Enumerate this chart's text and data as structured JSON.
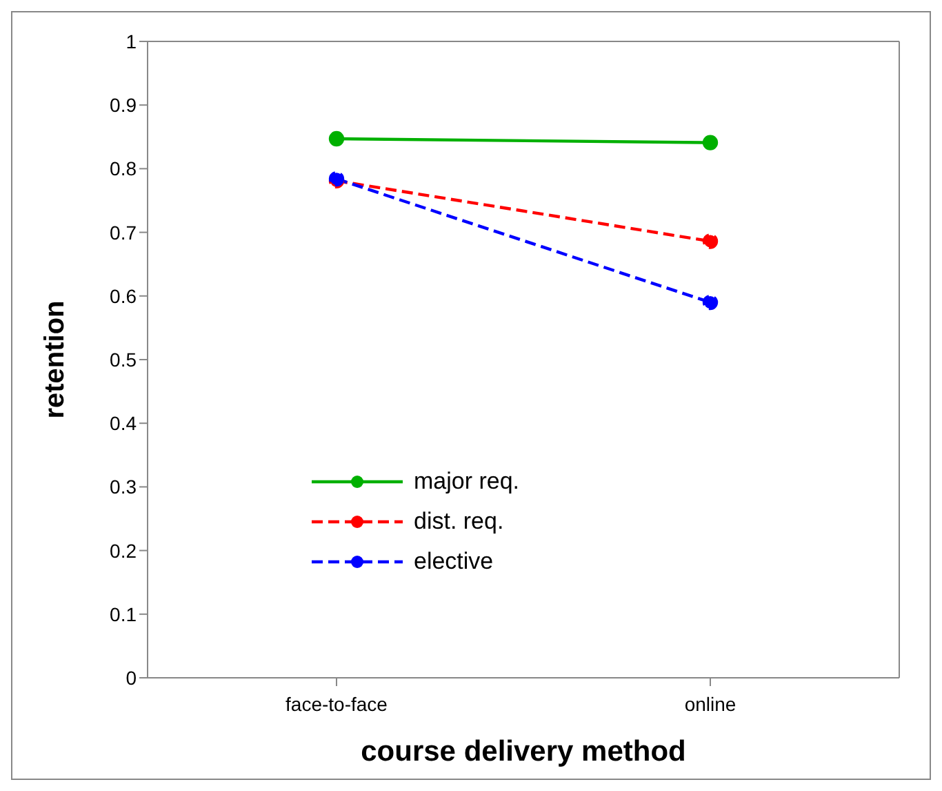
{
  "chart_data": {
    "type": "line",
    "xlabel": "course delivery method",
    "ylabel": "retention",
    "categories": [
      "face-to-face",
      "online"
    ],
    "series": [
      {
        "name": "major req.",
        "color": "#00b000",
        "values": [
          0.847,
          0.841
        ],
        "line_style": "solid"
      },
      {
        "name": "dist. req.",
        "color": "#ff0000",
        "values": [
          0.781,
          0.686
        ],
        "line_style": "dashed"
      },
      {
        "name": "elective",
        "color": "#0000ff",
        "values": [
          0.784,
          0.59
        ],
        "line_style": "dashed"
      }
    ],
    "ylim": [
      0,
      1
    ],
    "yticks": [
      0,
      0.1,
      0.2,
      0.3,
      0.4,
      0.5,
      0.6,
      0.7,
      0.8,
      0.9,
      1
    ],
    "grid": false,
    "legend": "bottom left",
    "marker": "circle"
  }
}
